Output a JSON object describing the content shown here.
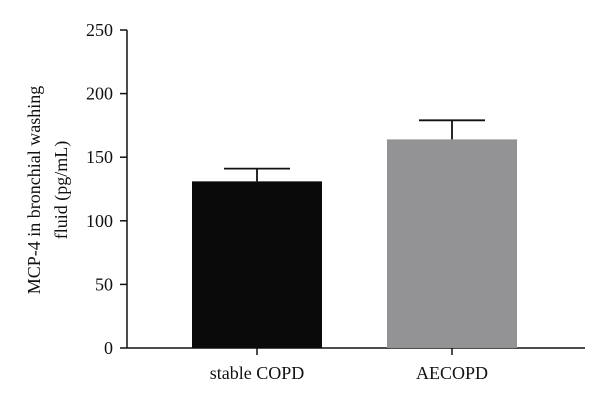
{
  "chart_data": {
    "type": "bar",
    "categories": [
      "stable COPD",
      "AECOPD"
    ],
    "series": [
      {
        "values": [
          131,
          164
        ],
        "error_upper": [
          141,
          179
        ],
        "colors": [
          "#0a0a0a",
          "#939396"
        ]
      }
    ],
    "ylabel_lines": [
      "MCP-4 in bronchial washing",
      "fluid (pg/mL)"
    ],
    "xlabel": "",
    "ylim": [
      0,
      250
    ],
    "yticks": [
      0,
      50,
      100,
      150,
      200,
      250
    ],
    "grid": false
  }
}
